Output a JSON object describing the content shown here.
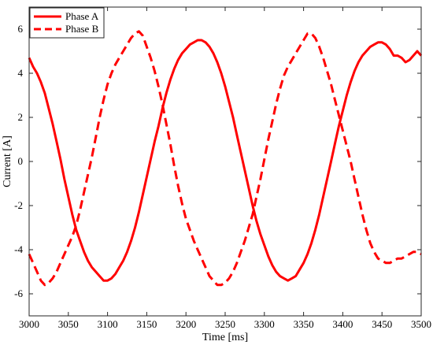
{
  "chart_data": {
    "type": "line",
    "title": "",
    "xlabel": "Time [ms]",
    "ylabel": "Current [A]",
    "xlim": [
      3000,
      3500
    ],
    "ylim": [
      -7,
      7
    ],
    "xticks": [
      3000,
      3050,
      3100,
      3150,
      3200,
      3250,
      3300,
      3350,
      3400,
      3450,
      3500
    ],
    "yticks": [
      -6,
      -4,
      -2,
      0,
      2,
      4,
      6
    ],
    "grid": false,
    "legend": {
      "position": "top-left",
      "boxed": true
    },
    "series": [
      {
        "name": "Phase A",
        "style": "solid",
        "color": "#ff0000",
        "x": [
          3000,
          3005,
          3010,
          3015,
          3020,
          3025,
          3030,
          3035,
          3040,
          3045,
          3050,
          3055,
          3060,
          3065,
          3070,
          3075,
          3080,
          3085,
          3090,
          3095,
          3100,
          3105,
          3110,
          3115,
          3120,
          3125,
          3130,
          3135,
          3140,
          3145,
          3150,
          3155,
          3160,
          3165,
          3170,
          3175,
          3180,
          3185,
          3190,
          3195,
          3200,
          3205,
          3210,
          3215,
          3220,
          3225,
          3230,
          3235,
          3240,
          3245,
          3250,
          3255,
          3260,
          3265,
          3270,
          3275,
          3280,
          3285,
          3290,
          3295,
          3300,
          3305,
          3310,
          3315,
          3320,
          3325,
          3330,
          3335,
          3340,
          3345,
          3350,
          3355,
          3360,
          3365,
          3370,
          3375,
          3380,
          3385,
          3390,
          3395,
          3400,
          3405,
          3410,
          3415,
          3420,
          3425,
          3430,
          3435,
          3440,
          3445,
          3450,
          3455,
          3460,
          3465,
          3470,
          3475,
          3480,
          3485,
          3490,
          3495,
          3500
        ],
        "y": [
          4.7,
          4.3,
          4.0,
          3.6,
          3.1,
          2.4,
          1.7,
          0.9,
          0.1,
          -0.8,
          -1.6,
          -2.4,
          -3.1,
          -3.6,
          -4.1,
          -4.5,
          -4.8,
          -5.0,
          -5.2,
          -5.4,
          -5.4,
          -5.3,
          -5.1,
          -4.8,
          -4.5,
          -4.1,
          -3.6,
          -3.0,
          -2.3,
          -1.5,
          -0.7,
          0.1,
          0.9,
          1.6,
          2.4,
          3.1,
          3.7,
          4.2,
          4.6,
          4.9,
          5.1,
          5.3,
          5.4,
          5.5,
          5.5,
          5.4,
          5.2,
          4.9,
          4.5,
          4.0,
          3.4,
          2.7,
          2.0,
          1.2,
          0.4,
          -0.4,
          -1.2,
          -2.0,
          -2.7,
          -3.3,
          -3.8,
          -4.3,
          -4.7,
          -5.0,
          -5.2,
          -5.3,
          -5.4,
          -5.3,
          -5.2,
          -4.9,
          -4.6,
          -4.2,
          -3.7,
          -3.1,
          -2.4,
          -1.6,
          -0.8,
          0.0,
          0.8,
          1.6,
          2.3,
          3.0,
          3.6,
          4.1,
          4.5,
          4.8,
          5.0,
          5.2,
          5.3,
          5.4,
          5.4,
          5.3,
          5.1,
          4.8,
          4.8,
          4.7,
          4.5,
          4.6,
          4.8,
          5.0,
          4.8
        ]
      },
      {
        "name": "Phase B",
        "style": "dashed",
        "color": "#ff0000",
        "x": [
          3000,
          3005,
          3010,
          3015,
          3020,
          3025,
          3030,
          3035,
          3040,
          3045,
          3050,
          3055,
          3060,
          3065,
          3070,
          3075,
          3080,
          3085,
          3090,
          3095,
          3100,
          3105,
          3110,
          3115,
          3120,
          3125,
          3130,
          3135,
          3140,
          3145,
          3150,
          3155,
          3160,
          3165,
          3170,
          3175,
          3180,
          3185,
          3190,
          3195,
          3200,
          3205,
          3210,
          3215,
          3220,
          3225,
          3230,
          3235,
          3240,
          3245,
          3250,
          3255,
          3260,
          3265,
          3270,
          3275,
          3280,
          3285,
          3290,
          3295,
          3300,
          3305,
          3310,
          3315,
          3320,
          3325,
          3330,
          3335,
          3340,
          3345,
          3350,
          3355,
          3360,
          3365,
          3370,
          3375,
          3380,
          3385,
          3390,
          3395,
          3400,
          3405,
          3410,
          3415,
          3420,
          3425,
          3430,
          3435,
          3440,
          3445,
          3450,
          3455,
          3460,
          3465,
          3470,
          3475,
          3480,
          3485,
          3490,
          3495,
          3500
        ],
        "y": [
          -4.2,
          -4.6,
          -5.0,
          -5.4,
          -5.6,
          -5.5,
          -5.3,
          -5.0,
          -4.6,
          -4.2,
          -3.8,
          -3.4,
          -2.9,
          -2.2,
          -1.4,
          -0.6,
          0.2,
          1.1,
          2.0,
          2.8,
          3.5,
          4.0,
          4.4,
          4.7,
          5.0,
          5.3,
          5.6,
          5.8,
          5.9,
          5.7,
          5.2,
          4.7,
          4.1,
          3.4,
          2.6,
          1.7,
          0.8,
          -0.2,
          -1.1,
          -1.9,
          -2.6,
          -3.1,
          -3.6,
          -4.0,
          -4.4,
          -4.8,
          -5.2,
          -5.4,
          -5.6,
          -5.6,
          -5.5,
          -5.3,
          -5.0,
          -4.6,
          -4.1,
          -3.6,
          -3.0,
          -2.4,
          -1.6,
          -0.8,
          0.1,
          1.0,
          1.8,
          2.6,
          3.3,
          3.9,
          4.3,
          4.6,
          4.9,
          5.2,
          5.5,
          5.8,
          5.8,
          5.6,
          5.2,
          4.7,
          4.1,
          3.5,
          2.8,
          2.1,
          1.4,
          0.7,
          0.0,
          -0.8,
          -1.6,
          -2.4,
          -3.1,
          -3.7,
          -4.1,
          -4.4,
          -4.5,
          -4.6,
          -4.6,
          -4.5,
          -4.4,
          -4.4,
          -4.3,
          -4.2,
          -4.1,
          -4.1,
          -4.2
        ]
      }
    ]
  }
}
